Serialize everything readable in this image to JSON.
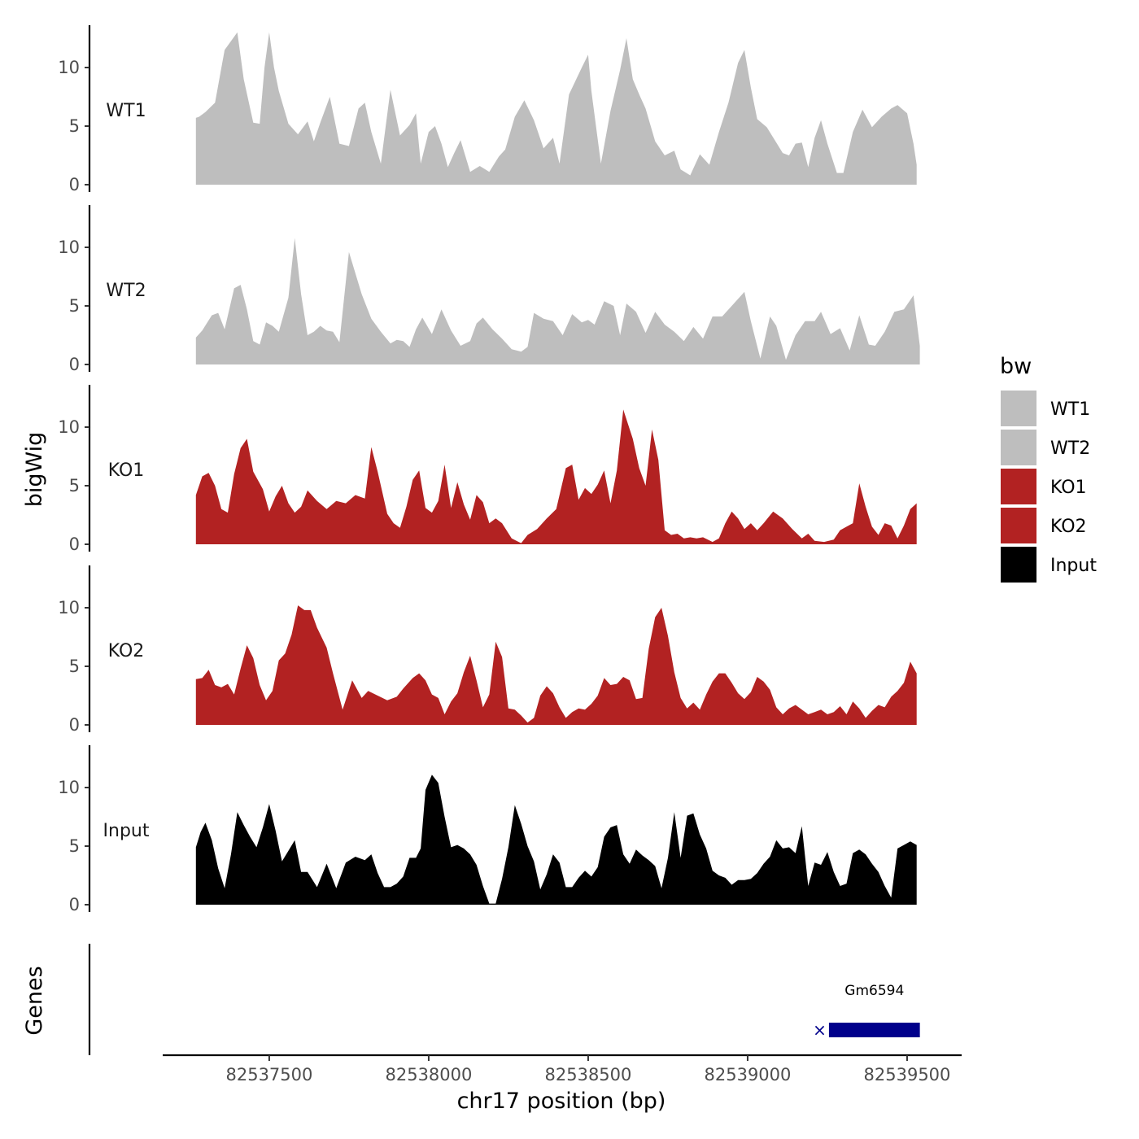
{
  "chart_data": {
    "type": "area",
    "xlabel": "chr17 position (bp)",
    "ylabel": "bigWig",
    "genes_axis_label": "Genes",
    "xlim": [
      82537166,
      82539671
    ],
    "ylim": [
      0,
      13.8
    ],
    "x_ticks": [
      82537500,
      82538000,
      82538500,
      82539000,
      82539500
    ],
    "x_tick_labels": [
      "82537500",
      "82538000",
      "82538500",
      "82539000",
      "82539500"
    ],
    "y_ticks": [
      0,
      5,
      10
    ],
    "y_tick_labels": [
      "0",
      "5",
      "10"
    ],
    "legend": {
      "title": "bw",
      "position": "right",
      "entries": [
        {
          "label": "WT1",
          "color": "#bebebe"
        },
        {
          "label": "WT2",
          "color": "#bebebe"
        },
        {
          "label": "KO1",
          "color": "#b22222"
        },
        {
          "label": "KO2",
          "color": "#b22222"
        },
        {
          "label": "Input",
          "color": "#000000"
        }
      ]
    },
    "series": [
      {
        "name": "WT1",
        "color": "#bebebe",
        "x": [
          82537270,
          82537280,
          82537300,
          82537330,
          82537360,
          82537400,
          82537420,
          82537450,
          82537470,
          82537485,
          82537500,
          82537515,
          82537530,
          82537560,
          82537590,
          82537620,
          82537640,
          82537660,
          82537690,
          82537720,
          82537750,
          82537780,
          82537800,
          82537820,
          82537850,
          82537880,
          82537910,
          82537940,
          82537960,
          82537975,
          82538000,
          82538020,
          82538040,
          82538060,
          82538080,
          82538100,
          82538130,
          82538160,
          82538190,
          82538220,
          82538240,
          82538270,
          82538300,
          82538330,
          82538360,
          82538390,
          82538410,
          82538440,
          82538480,
          82538500,
          82538510,
          82538540,
          82538570,
          82538600,
          82538620,
          82538640,
          82538660,
          82538680,
          82538710,
          82538740,
          82538770,
          82538790,
          82538820,
          82538850,
          82538880,
          82538910,
          82538940,
          82538970,
          82538990,
          82539010,
          82539030,
          82539060,
          82539090,
          82539110,
          82539130,
          82539150,
          82539170,
          82539190,
          82539210,
          82539230,
          82539250,
          82539280,
          82539300,
          82539330,
          82539360,
          82539390,
          82539420,
          82539450,
          82539470,
          82539500,
          82539520,
          82539530
        ],
        "values": [
          5.7,
          5.8,
          6.2,
          7,
          11.5,
          13,
          9,
          5.3,
          5.2,
          10,
          13,
          10,
          8,
          5.2,
          4.3,
          5.4,
          3.7,
          5.3,
          7.5,
          3.5,
          3.3,
          6.5,
          7,
          4.5,
          1.8,
          8.1,
          4.2,
          5.1,
          6.1,
          1.8,
          4.5,
          5,
          3.5,
          1.5,
          2.7,
          3.8,
          1.1,
          1.6,
          1.1,
          2.4,
          3,
          5.8,
          7.2,
          5.5,
          3.1,
          4,
          1.8,
          7.7,
          10,
          11.1,
          8,
          1.8,
          6.3,
          9.8,
          12.5,
          9,
          7.7,
          6.5,
          3.7,
          2.5,
          2.9,
          1.3,
          0.8,
          2.6,
          1.7,
          4.5,
          7,
          10.4,
          11.5,
          8.3,
          5.6,
          4.9,
          3.6,
          2.7,
          2.5,
          3.5,
          3.6,
          1.5,
          4,
          5.5,
          3.5,
          1,
          1,
          4.5,
          6.4,
          4.9,
          5.8,
          6.5,
          6.8,
          6.1,
          3.5,
          1.7
        ]
      },
      {
        "name": "WT2",
        "color": "#bebebe",
        "x": [
          82537270,
          82537290,
          82537320,
          82537340,
          82537360,
          82537390,
          82537410,
          82537430,
          82537450,
          82537470,
          82537490,
          82537510,
          82537530,
          82537560,
          82537580,
          82537600,
          82537620,
          82537640,
          82537660,
          82537680,
          82537700,
          82537720,
          82537750,
          82537790,
          82537820,
          82537850,
          82537880,
          82537900,
          82537920,
          82537940,
          82537960,
          82537980,
          82538010,
          82538040,
          82538070,
          82538100,
          82538130,
          82538150,
          82538170,
          82538200,
          82538230,
          82538260,
          82538290,
          82538310,
          82538330,
          82538360,
          82538390,
          82538420,
          82538450,
          82538480,
          82538500,
          82538520,
          82538550,
          82538580,
          82538600,
          82538620,
          82538650,
          82538680,
          82538710,
          82538740,
          82538770,
          82538800,
          82538830,
          82538860,
          82538890,
          82538920,
          82538950,
          82538990,
          82539010,
          82539040,
          82539070,
          82539090,
          82539120,
          82539150,
          82539180,
          82539210,
          82539230,
          82539260,
          82539290,
          82539320,
          82539350,
          82539380,
          82539400,
          82539430,
          82539460,
          82539490,
          82539520,
          82539540
        ],
        "values": [
          2.3,
          2.9,
          4.2,
          4.4,
          3,
          6.5,
          6.8,
          4.7,
          2,
          1.7,
          3.6,
          3.3,
          2.8,
          5.7,
          10.8,
          6,
          2.5,
          2.8,
          3.3,
          2.9,
          2.8,
          1.9,
          9.6,
          6,
          3.9,
          2.8,
          1.8,
          2.1,
          2,
          1.5,
          3,
          4,
          2.6,
          4.7,
          2.9,
          1.6,
          2,
          3.5,
          4,
          3,
          2.2,
          1.3,
          1.1,
          1.5,
          4.4,
          3.9,
          3.7,
          2.5,
          4.3,
          3.6,
          3.8,
          3.4,
          5.4,
          5,
          2.5,
          5.2,
          4.5,
          2.7,
          4.5,
          3.4,
          2.8,
          2,
          3.2,
          2.2,
          4.1,
          4.1,
          5,
          6.2,
          3.7,
          0.5,
          4.1,
          3.3,
          0.4,
          2.5,
          3.7,
          3.7,
          4.5,
          2.6,
          3.1,
          1.2,
          4.2,
          1.7,
          1.6,
          2.8,
          4.5,
          4.7,
          5.9,
          1.6
        ]
      },
      {
        "name": "KO1",
        "color": "#b22222",
        "x": [
          82537270,
          82537290,
          82537310,
          82537330,
          82537350,
          82537370,
          82537390,
          82537410,
          82537430,
          82537450,
          82537480,
          82537500,
          82537520,
          82537540,
          82537560,
          82537580,
          82537600,
          82537620,
          82537650,
          82537680,
          82537710,
          82537740,
          82537770,
          82537800,
          82537820,
          82537840,
          82537870,
          82537890,
          82537910,
          82537930,
          82537950,
          82537970,
          82537990,
          82538010,
          82538030,
          82538050,
          82538070,
          82538090,
          82538110,
          82538130,
          82538150,
          82538170,
          82538190,
          82538210,
          82538230,
          82538260,
          82538290,
          82538310,
          82538340,
          82538370,
          82538400,
          82538430,
          82538450,
          82538470,
          82538490,
          82538510,
          82538530,
          82538550,
          82538570,
          82538590,
          82538610,
          82538640,
          82538660,
          82538680,
          82538700,
          82538720,
          82538740,
          82538760,
          82538780,
          82538800,
          82538820,
          82538840,
          82538860,
          82538890,
          82538910,
          82538930,
          82538950,
          82538970,
          82538990,
          82539010,
          82539030,
          82539050,
          82539080,
          82539110,
          82539140,
          82539170,
          82539190,
          82539210,
          82539240,
          82539270,
          82539290,
          82539310,
          82539330,
          82539350,
          82539370,
          82539390,
          82539410,
          82539430,
          82539450,
          82539470,
          82539490,
          82539510,
          82539530
        ],
        "values": [
          4.2,
          5.8,
          6.1,
          5,
          3,
          2.7,
          6,
          8.2,
          9,
          6.2,
          4.7,
          2.8,
          4.1,
          5,
          3.5,
          2.7,
          3.2,
          4.6,
          3.7,
          3,
          3.7,
          3.5,
          4.2,
          3.9,
          8.3,
          6.2,
          2.6,
          1.8,
          1.4,
          3.2,
          5.5,
          6.3,
          3.1,
          2.7,
          3.7,
          6.8,
          3.1,
          5.3,
          3.4,
          2.1,
          4.2,
          3.6,
          1.8,
          2.2,
          1.8,
          0.5,
          0.1,
          0.8,
          1.3,
          2.2,
          3,
          6.5,
          6.8,
          3.8,
          4.8,
          4.3,
          5.1,
          6.3,
          3.5,
          6.3,
          11.5,
          9,
          6.5,
          5,
          9.8,
          7.2,
          1.2,
          0.8,
          0.9,
          0.5,
          0.6,
          0.5,
          0.6,
          0.2,
          0.5,
          1.8,
          2.8,
          2.2,
          1.3,
          1.8,
          1.2,
          1.8,
          2.8,
          2.2,
          1.3,
          0.5,
          0.9,
          0.3,
          0.2,
          0.4,
          1.2,
          1.5,
          1.8,
          5.2,
          3.2,
          1.5,
          0.8,
          1.8,
          1.6,
          0.5,
          1.6,
          3,
          3.5
        ]
      },
      {
        "name": "KO2",
        "color": "#b22222",
        "x": [
          82537270,
          82537290,
          82537310,
          82537330,
          82537350,
          82537370,
          82537390,
          82537410,
          82537430,
          82537450,
          82537470,
          82537490,
          82537510,
          82537530,
          82537550,
          82537570,
          82537590,
          82537610,
          82537630,
          82537650,
          82537680,
          82537700,
          82537730,
          82537760,
          82537790,
          82537810,
          82537840,
          82537870,
          82537900,
          82537920,
          82537950,
          82537970,
          82537990,
          82538010,
          82538030,
          82538050,
          82538070,
          82538090,
          82538110,
          82538130,
          82538150,
          82538170,
          82538190,
          82538210,
          82538230,
          82538250,
          82538270,
          82538290,
          82538310,
          82538330,
          82538350,
          82538370,
          82538390,
          82538410,
          82538430,
          82538450,
          82538470,
          82538490,
          82538510,
          82538530,
          82538550,
          82538570,
          82538590,
          82538610,
          82538630,
          82538650,
          82538670,
          82538690,
          82538710,
          82538730,
          82538750,
          82538770,
          82538790,
          82538810,
          82538830,
          82538850,
          82538870,
          82538890,
          82538910,
          82538930,
          82538950,
          82538970,
          82538990,
          82539010,
          82539030,
          82539050,
          82539070,
          82539090,
          82539110,
          82539130,
          82539150,
          82539170,
          82539190,
          82539210,
          82539230,
          82539250,
          82539270,
          82539290,
          82539310,
          82539330,
          82539350,
          82539370,
          82539390,
          82539410,
          82539430,
          82539450,
          82539470,
          82539490,
          82539510,
          82539530
        ],
        "values": [
          3.9,
          4,
          4.7,
          3.4,
          3.2,
          3.5,
          2.6,
          4.8,
          6.8,
          5.7,
          3.4,
          2.1,
          2.9,
          5.5,
          6.1,
          7.7,
          10.2,
          9.8,
          9.8,
          8.3,
          6.6,
          4.4,
          1.3,
          3.8,
          2.3,
          2.9,
          2.5,
          2.1,
          2.4,
          3.1,
          4,
          4.4,
          3.8,
          2.6,
          2.3,
          0.9,
          2,
          2.7,
          4.5,
          5.9,
          3.8,
          1.5,
          2.6,
          7.1,
          5.8,
          1.4,
          1.3,
          0.8,
          0.2,
          0.6,
          2.5,
          3.3,
          2.7,
          1.5,
          0.6,
          1.1,
          1.4,
          1.3,
          1.8,
          2.5,
          4,
          3.4,
          3.5,
          4.1,
          3.8,
          2.2,
          2.3,
          6.5,
          9.2,
          10,
          7.6,
          4.5,
          2.3,
          1.4,
          1.9,
          1.3,
          2.6,
          3.7,
          4.4,
          4.4,
          3.6,
          2.7,
          2.2,
          2.8,
          4.1,
          3.7,
          3,
          1.5,
          0.9,
          1.4,
          1.7,
          1.3,
          0.9,
          1.1,
          1.3,
          0.9,
          1.1,
          1.6,
          0.9,
          2,
          1.4,
          0.6,
          1.2,
          1.7,
          1.5,
          2.4,
          2.9,
          3.6,
          5.4,
          4.4
        ]
      },
      {
        "name": "Input",
        "color": "#000000",
        "x": [
          82537270,
          82537285,
          82537300,
          82537320,
          82537340,
          82537360,
          82537380,
          82537400,
          82537420,
          82537440,
          82537460,
          82537480,
          82537500,
          82537520,
          82537540,
          82537560,
          82537580,
          82537600,
          82537620,
          82537650,
          82537680,
          82537710,
          82537740,
          82537770,
          82537800,
          82537820,
          82537840,
          82537860,
          82537880,
          82537900,
          82537920,
          82537940,
          82537960,
          82537975,
          82537990,
          82538010,
          82538030,
          82538050,
          82538070,
          82538090,
          82538110,
          82538130,
          82538150,
          82538170,
          82538190,
          82538210,
          82538230,
          82538250,
          82538270,
          82538290,
          82538310,
          82538330,
          82538350,
          82538370,
          82538390,
          82538410,
          82538430,
          82538450,
          82538470,
          82538490,
          82538510,
          82538530,
          82538550,
          82538570,
          82538590,
          82538610,
          82538630,
          82538650,
          82538670,
          82538690,
          82538710,
          82538730,
          82538750,
          82538770,
          82538790,
          82538810,
          82538830,
          82538850,
          82538870,
          82538890,
          82538910,
          82538930,
          82538950,
          82538970,
          82538990,
          82539010,
          82539030,
          82539050,
          82539070,
          82539090,
          82539110,
          82539130,
          82539150,
          82539170,
          82539190,
          82539210,
          82539230,
          82539250,
          82539270,
          82539290,
          82539310,
          82539330,
          82539350,
          82539370,
          82539390,
          82539410,
          82539430,
          82539450,
          82539470,
          82539490,
          82539510,
          82539530
        ],
        "values": [
          4.9,
          6.2,
          7,
          5.5,
          3.1,
          1.4,
          4.3,
          7.9,
          6.8,
          5.8,
          4.9,
          6.6,
          8.6,
          6.3,
          3.7,
          4.6,
          5.5,
          2.8,
          2.8,
          1.5,
          3.5,
          1.4,
          3.6,
          4.1,
          3.8,
          4.3,
          2.7,
          1.5,
          1.5,
          1.8,
          2.4,
          4,
          4,
          4.8,
          9.8,
          11.1,
          10.4,
          7.5,
          4.9,
          5.1,
          4.8,
          4.3,
          3.4,
          1.6,
          0.1,
          0.1,
          2.2,
          4.9,
          8.5,
          6.9,
          5,
          3.7,
          1.3,
          2.6,
          4.3,
          3.6,
          1.5,
          1.5,
          2.3,
          2.9,
          2.4,
          3.2,
          5.8,
          6.6,
          6.8,
          4.3,
          3.5,
          4.7,
          4.2,
          3.8,
          3.3,
          1.4,
          4,
          7.9,
          4,
          7.6,
          7.8,
          6,
          4.8,
          2.9,
          2.5,
          2.3,
          1.7,
          2.1,
          2.1,
          2.2,
          2.7,
          3.5,
          4.1,
          5.5,
          4.8,
          4.9,
          4.4,
          6.7,
          1.6,
          3.6,
          3.4,
          4.5,
          2.8,
          1.6,
          1.8,
          4.4,
          4.7,
          4.3,
          3.5,
          2.8,
          1.6,
          0.6,
          4.8,
          5.1,
          5.4,
          5.1
        ]
      }
    ],
    "genes": [
      {
        "name": "Gm6594",
        "start": 82539255,
        "end": 82539540,
        "strand": "-",
        "color": "#00008b"
      }
    ]
  }
}
